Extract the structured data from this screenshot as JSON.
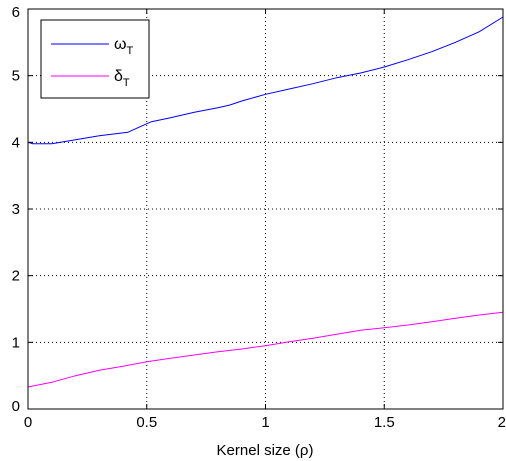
{
  "chart_data": {
    "type": "line",
    "xlabel": "Kernel size (ρ)",
    "xlim": [
      0,
      2
    ],
    "ylim": [
      0,
      6
    ],
    "x_ticks": [
      {
        "value": 0,
        "label": "0"
      },
      {
        "value": 0.5,
        "label": "0.5"
      },
      {
        "value": 1,
        "label": "1"
      },
      {
        "value": 1.5,
        "label": "1.5"
      },
      {
        "value": 2,
        "label": "2"
      }
    ],
    "y_ticks": [
      {
        "value": 0,
        "label": "0"
      },
      {
        "value": 1,
        "label": "1"
      },
      {
        "value": 2,
        "label": "2"
      },
      {
        "value": 3,
        "label": "3"
      },
      {
        "value": 4,
        "label": "4"
      },
      {
        "value": 5,
        "label": "5"
      },
      {
        "value": 6,
        "label": "6"
      }
    ],
    "grid": true,
    "legend_position": "top-left",
    "series": [
      {
        "name": "ω",
        "name_sub": "T",
        "color": "#0000ff",
        "x": [
          0,
          0.02,
          0.1,
          0.2,
          0.3,
          0.42,
          0.5,
          0.52,
          0.6,
          0.7,
          0.8,
          0.85,
          0.9,
          1.0,
          1.1,
          1.2,
          1.3,
          1.4,
          1.5,
          1.6,
          1.7,
          1.8,
          1.9,
          2.0
        ],
        "values": [
          4.0,
          3.98,
          3.98,
          4.04,
          4.1,
          4.15,
          4.28,
          4.31,
          4.37,
          4.45,
          4.52,
          4.56,
          4.62,
          4.72,
          4.8,
          4.88,
          4.97,
          5.04,
          5.13,
          5.24,
          5.36,
          5.5,
          5.66,
          5.88
        ]
      },
      {
        "name": "δ",
        "name_sub": "T",
        "color": "#ff00ff",
        "x": [
          0,
          0.1,
          0.2,
          0.3,
          0.4,
          0.5,
          0.6,
          0.7,
          0.8,
          0.9,
          1.0,
          1.1,
          1.2,
          1.3,
          1.4,
          1.5,
          1.6,
          1.7,
          1.8,
          1.9,
          2.0
        ],
        "values": [
          0.33,
          0.4,
          0.5,
          0.58,
          0.64,
          0.71,
          0.76,
          0.81,
          0.86,
          0.9,
          0.95,
          1.01,
          1.06,
          1.12,
          1.18,
          1.22,
          1.26,
          1.31,
          1.36,
          1.41,
          1.45
        ]
      }
    ]
  }
}
